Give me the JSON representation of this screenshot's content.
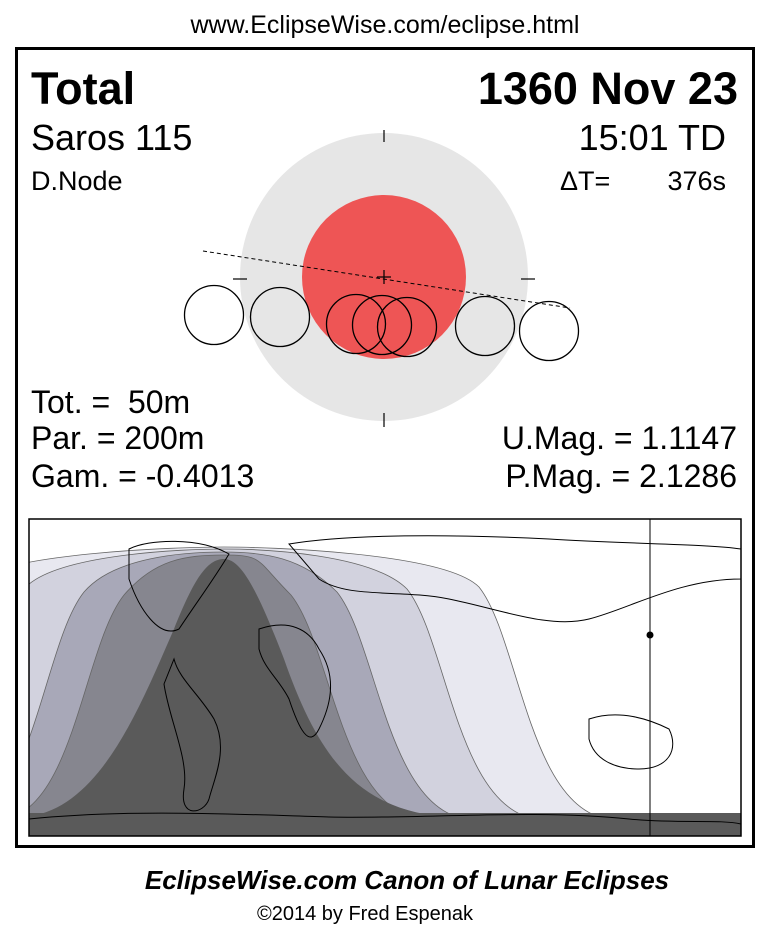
{
  "header": {
    "url": "www.EclipseWise.com/eclipse.html"
  },
  "eclipse": {
    "type": "Total",
    "date": "1360 Nov 23",
    "saros": "Saros 115",
    "time": "15:01 TD",
    "node": "D.Node",
    "delta_t_label": "ΔT=",
    "delta_t_value": "376s",
    "totality": "Tot. =  50m",
    "partial": "Par. = 200m",
    "gamma": "Gam. = -0.4013",
    "umbral_mag": "U.Mag. = 1.1147",
    "penumbral_mag": "P.Mag. = 2.1286"
  },
  "colors": {
    "umbra": "#ee5555",
    "penumbra": "#e6e6e6",
    "map_bands": [
      "#e8e8f0",
      "#d2d2de",
      "#a8a8b8",
      "#86868f"
    ],
    "map_total": "#5a5a5a"
  },
  "footer": {
    "title": "EclipseWise.com Canon of Lunar Eclipses",
    "copyright": "©2014 by Fred Espenak"
  }
}
